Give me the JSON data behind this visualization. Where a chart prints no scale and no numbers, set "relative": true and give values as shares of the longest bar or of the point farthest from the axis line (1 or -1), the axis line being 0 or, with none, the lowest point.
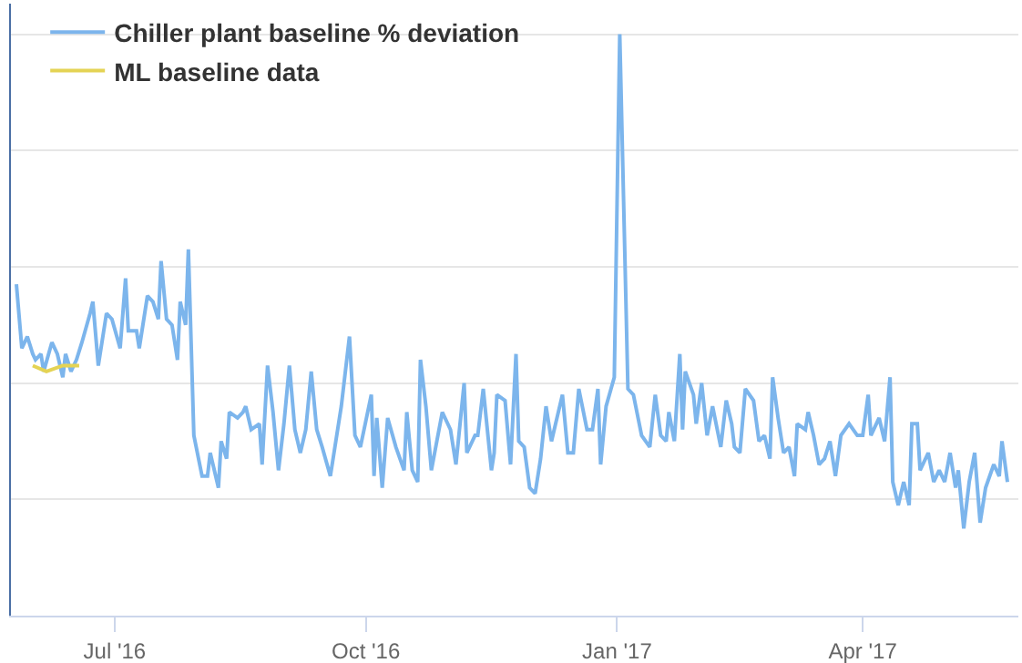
{
  "chart_data": {
    "type": "line",
    "relative": true,
    "grid": "y",
    "legend": "top left",
    "marker": "none",
    "line_style": "solid",
    "xlim": [
      "2016-05-24",
      "2017-05-28"
    ],
    "xticks": [
      {
        "value": "2016-07-01",
        "label": "Jul '16"
      },
      {
        "value": "2016-10-01",
        "label": "Oct '16"
      },
      {
        "value": "2017-01-01",
        "label": "Jan '17"
      },
      {
        "value": "2017-04-01",
        "label": "Apr '17"
      }
    ],
    "series": [
      {
        "name": "Chiller plant baseline % deviation",
        "color": "#7cb5ec",
        "x": [
          "2016-05-26",
          "2016-05-28",
          "2016-05-30",
          "2016-06-01",
          "2016-06-02",
          "2016-06-04",
          "2016-06-05",
          "2016-06-08",
          "2016-06-10",
          "2016-06-12",
          "2016-06-13",
          "2016-06-15",
          "2016-06-17",
          "2016-06-19",
          "2016-06-22",
          "2016-06-23",
          "2016-06-25",
          "2016-06-28",
          "2016-06-30",
          "2016-07-03",
          "2016-07-05",
          "2016-07-06",
          "2016-07-09",
          "2016-07-10",
          "2016-07-13",
          "2016-07-15",
          "2016-07-17",
          "2016-07-18",
          "2016-07-20",
          "2016-07-22",
          "2016-07-24",
          "2016-07-25",
          "2016-07-27",
          "2016-07-28",
          "2016-07-30",
          "2016-08-02",
          "2016-08-04",
          "2016-08-05",
          "2016-08-08",
          "2016-08-09",
          "2016-08-11",
          "2016-08-12",
          "2016-08-15",
          "2016-08-17",
          "2016-08-18",
          "2016-08-20",
          "2016-08-23",
          "2016-08-24",
          "2016-08-26",
          "2016-08-28",
          "2016-08-30",
          "2016-09-01",
          "2016-09-03",
          "2016-09-05",
          "2016-09-07",
          "2016-09-09",
          "2016-09-11",
          "2016-09-13",
          "2016-09-15",
          "2016-09-18",
          "2016-09-20",
          "2016-09-22",
          "2016-09-25",
          "2016-09-27",
          "2016-09-29",
          "2016-10-03",
          "2016-10-04",
          "2016-10-05",
          "2016-10-07",
          "2016-10-09",
          "2016-10-12",
          "2016-10-15",
          "2016-10-16",
          "2016-10-18",
          "2016-10-20",
          "2016-10-21",
          "2016-10-23",
          "2016-10-25",
          "2016-10-27",
          "2016-10-29",
          "2016-11-01",
          "2016-11-03",
          "2016-11-06",
          "2016-11-07",
          "2016-11-10",
          "2016-11-11",
          "2016-11-13",
          "2016-11-16",
          "2016-11-17",
          "2016-11-18",
          "2016-11-21",
          "2016-11-23",
          "2016-11-25",
          "2016-11-26",
          "2016-11-28",
          "2016-11-30",
          "2016-12-02",
          "2016-12-04",
          "2016-12-06",
          "2016-12-08",
          "2016-12-12",
          "2016-12-14",
          "2016-12-16",
          "2016-12-18",
          "2016-12-21",
          "2016-12-23",
          "2016-12-25",
          "2016-12-26",
          "2016-12-28",
          "2016-12-31",
          "2017-01-02",
          "2017-01-05",
          "2017-01-07",
          "2017-01-10",
          "2017-01-13",
          "2017-01-15",
          "2017-01-17",
          "2017-01-19",
          "2017-01-20",
          "2017-01-22",
          "2017-01-24",
          "2017-01-25",
          "2017-01-26",
          "2017-01-29",
          "2017-01-30",
          "2017-02-01",
          "2017-02-03",
          "2017-02-05",
          "2017-02-08",
          "2017-02-10",
          "2017-02-12",
          "2017-02-13",
          "2017-02-15",
          "2017-02-17",
          "2017-02-20",
          "2017-02-22",
          "2017-02-24",
          "2017-02-26",
          "2017-02-27",
          "2017-03-01",
          "2017-03-03",
          "2017-03-05",
          "2017-03-07",
          "2017-03-08",
          "2017-03-11",
          "2017-03-12",
          "2017-03-14",
          "2017-03-16",
          "2017-03-18",
          "2017-03-20",
          "2017-03-22",
          "2017-03-24",
          "2017-03-27",
          "2017-03-30",
          "2017-04-01",
          "2017-04-03",
          "2017-04-04",
          "2017-04-07",
          "2017-04-09",
          "2017-04-11",
          "2017-04-12",
          "2017-04-14",
          "2017-04-16",
          "2017-04-18",
          "2017-04-19",
          "2017-04-21",
          "2017-04-22",
          "2017-04-25",
          "2017-04-27",
          "2017-04-29",
          "2017-05-01",
          "2017-05-03",
          "2017-05-05",
          "2017-05-06",
          "2017-05-08",
          "2017-05-10",
          "2017-05-12",
          "2017-05-14",
          "2017-05-16",
          "2017-05-19",
          "2017-05-21",
          "2017-05-22",
          "2017-05-24"
        ],
        "values": [
          0.57,
          0.46,
          0.48,
          0.45,
          0.44,
          0.45,
          0.42,
          0.47,
          0.45,
          0.41,
          0.45,
          0.42,
          0.44,
          0.47,
          0.52,
          0.54,
          0.43,
          0.52,
          0.51,
          0.46,
          0.58,
          0.49,
          0.49,
          0.46,
          0.55,
          0.54,
          0.51,
          0.61,
          0.51,
          0.5,
          0.44,
          0.54,
          0.5,
          0.63,
          0.31,
          0.24,
          0.24,
          0.28,
          0.22,
          0.3,
          0.27,
          0.35,
          0.34,
          0.35,
          0.36,
          0.32,
          0.33,
          0.26,
          0.43,
          0.35,
          0.25,
          0.33,
          0.43,
          0.32,
          0.28,
          0.32,
          0.42,
          0.32,
          0.29,
          0.24,
          0.3,
          0.36,
          0.48,
          0.31,
          0.29,
          0.38,
          0.24,
          0.34,
          0.22,
          0.34,
          0.29,
          0.25,
          0.35,
          0.25,
          0.23,
          0.44,
          0.36,
          0.25,
          0.3,
          0.35,
          0.32,
          0.26,
          0.4,
          0.28,
          0.31,
          0.31,
          0.39,
          0.25,
          0.28,
          0.38,
          0.37,
          0.26,
          0.45,
          0.3,
          0.29,
          0.22,
          0.21,
          0.27,
          0.36,
          0.3,
          0.38,
          0.28,
          0.28,
          0.39,
          0.32,
          0.32,
          0.39,
          0.26,
          0.36,
          0.41,
          1.0,
          0.39,
          0.38,
          0.31,
          0.29,
          0.38,
          0.31,
          0.3,
          0.35,
          0.3,
          0.45,
          0.32,
          0.42,
          0.38,
          0.33,
          0.4,
          0.31,
          0.36,
          0.29,
          0.37,
          0.33,
          0.29,
          0.28,
          0.39,
          0.37,
          0.3,
          0.31,
          0.27,
          0.41,
          0.34,
          0.28,
          0.29,
          0.24,
          0.33,
          0.32,
          0.35,
          0.31,
          0.26,
          0.27,
          0.3,
          0.24,
          0.31,
          0.33,
          0.31,
          0.31,
          0.38,
          0.31,
          0.34,
          0.3,
          0.41,
          0.23,
          0.19,
          0.23,
          0.19,
          0.33,
          0.33,
          0.25,
          0.28,
          0.23,
          0.25,
          0.23,
          0.28,
          0.22,
          0.25,
          0.15,
          0.23,
          0.28,
          0.16,
          0.22,
          0.26,
          0.24,
          0.3,
          0.23
        ]
      },
      {
        "name": "ML baseline data",
        "color": "#e4d354",
        "x": [
          "2016-06-01",
          "2016-06-06",
          "2016-06-12",
          "2016-06-18"
        ],
        "values": [
          0.43,
          0.42,
          0.43,
          0.43
        ]
      }
    ]
  }
}
